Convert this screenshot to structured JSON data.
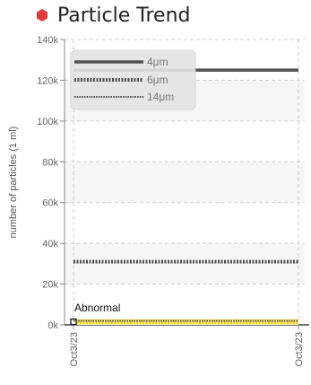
{
  "title": "Particle Trend",
  "colors": {
    "title_marker": "#e23b3b",
    "series_4um": "#555555",
    "series_6um": "#555555",
    "series_14um": "#555555",
    "abnormal": "#f2cf0f"
  },
  "chart_data": {
    "type": "line",
    "title": "Particle Trend",
    "xlabel": "",
    "ylabel": "number of particles (1 ml)",
    "x": [
      "Oct3/23",
      "Oct3/23"
    ],
    "ylim": [
      0,
      140000
    ],
    "yticks": [
      {
        "value": 0,
        "label": "0k"
      },
      {
        "value": 20000,
        "label": "20k"
      },
      {
        "value": 40000,
        "label": "40k"
      },
      {
        "value": 60000,
        "label": "60k"
      },
      {
        "value": 80000,
        "label": "80k"
      },
      {
        "value": 100000,
        "label": "100k"
      },
      {
        "value": 120000,
        "label": "120k"
      },
      {
        "value": 140000,
        "label": "140k"
      }
    ],
    "series": [
      {
        "name": "4μm",
        "values": [
          125000,
          125000
        ],
        "style": "solid"
      },
      {
        "name": "6μm",
        "values": [
          31000,
          31000
        ],
        "style": "dotted"
      },
      {
        "name": "14μm",
        "values": [
          2000,
          2000
        ],
        "style": "dashed"
      }
    ],
    "bands": [
      {
        "label": "Abnormal",
        "from": 0,
        "to": 3000,
        "color": "#f2cf0f"
      }
    ],
    "grid": true,
    "legend": "top-left"
  }
}
